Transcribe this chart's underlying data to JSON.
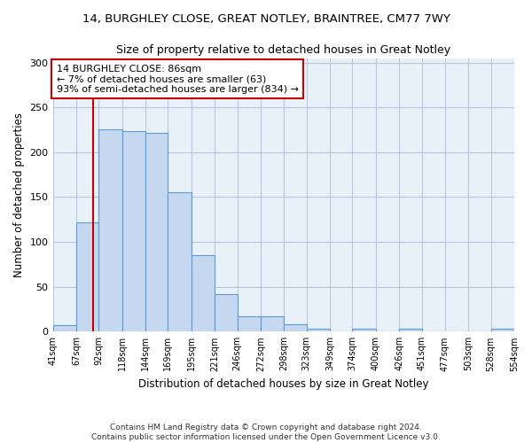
{
  "title1": "14, BURGHLEY CLOSE, GREAT NOTLEY, BRAINTREE, CM77 7WY",
  "title2": "Size of property relative to detached houses in Great Notley",
  "xlabel": "Distribution of detached houses by size in Great Notley",
  "ylabel": "Number of detached properties",
  "footnote1": "Contains HM Land Registry data © Crown copyright and database right 2024.",
  "footnote2": "Contains public sector information licensed under the Open Government Licence v3.0.",
  "bar_color": "#c5d8f0",
  "bar_edge_color": "#5b9bd5",
  "grid_color": "#b8c8dc",
  "bg_color": "#e8f0f8",
  "bins": [
    41,
    67,
    92,
    118,
    144,
    169,
    195,
    221,
    246,
    272,
    298,
    323,
    349,
    374,
    400,
    426,
    451,
    477,
    503,
    528,
    554
  ],
  "heights": [
    7,
    122,
    226,
    224,
    222,
    155,
    85,
    42,
    17,
    17,
    8,
    3,
    0,
    3,
    0,
    3,
    0,
    0,
    0,
    3
  ],
  "property_size": 86,
  "vline_color": "#cc0000",
  "annotation_text": "14 BURGHLEY CLOSE: 86sqm\n← 7% of detached houses are smaller (63)\n93% of semi-detached houses are larger (834) →",
  "annotation_box_color": "#ffffff",
  "annotation_box_edge": "#cc0000",
  "ylim": [
    0,
    305
  ],
  "yticks": [
    0,
    50,
    100,
    150,
    200,
    250,
    300
  ],
  "title1_fontsize": 9.5,
  "title2_fontsize": 9
}
